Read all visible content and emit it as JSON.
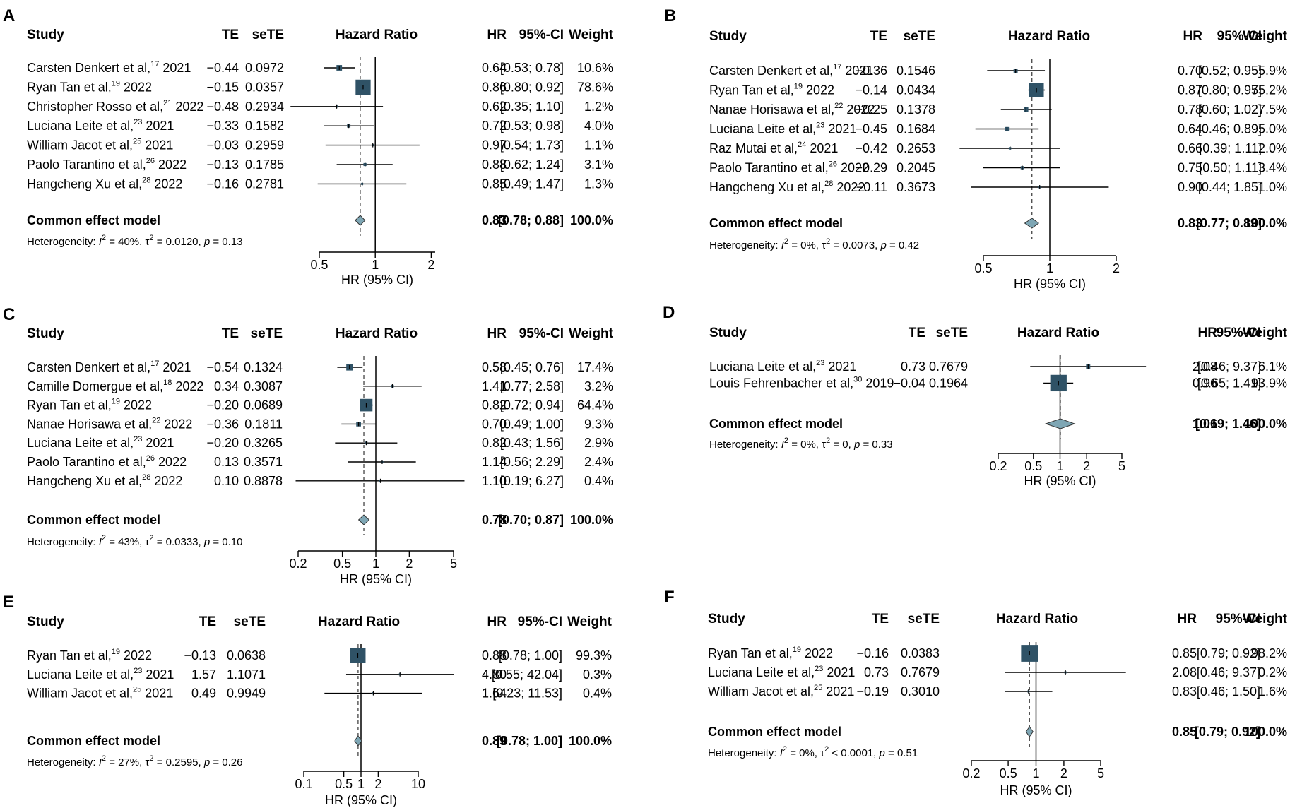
{
  "colors": {
    "box": "#2f5266",
    "diamond": "#7ea6b4",
    "dashed": "#444444",
    "line": "#000000"
  },
  "headers": {
    "study": "Study",
    "te": "TE",
    "sete": "seTE",
    "plot": "Hazard Ratio",
    "hr": "HR",
    "ci": "95%-CI",
    "weight": "Weight"
  },
  "chart_data": [
    {
      "type": "forest",
      "panel": "A",
      "studies": [
        {
          "author": "Carsten Denkert et al,",
          "ref": "17",
          "year": "2021",
          "te": "−0.44",
          "sete": "0.0972",
          "hr": 0.64,
          "lo": 0.53,
          "hi": 0.78,
          "hr_text": "0.64",
          "ci_text": "[0.53; 0.78]",
          "weight_text": "10.6%",
          "weight": 10.6
        },
        {
          "author": "Ryan Tan et al,",
          "ref": "19",
          "year": "2022",
          "te": "−0.15",
          "sete": "0.0357",
          "hr": 0.86,
          "lo": 0.8,
          "hi": 0.92,
          "hr_text": "0.86",
          "ci_text": "[0.80; 0.92]",
          "weight_text": "78.6%",
          "weight": 78.6
        },
        {
          "author": "Christopher Rosso et al,",
          "ref": "21",
          "year": "2022",
          "te": "−0.48",
          "sete": "0.2934",
          "hr": 0.62,
          "lo": 0.35,
          "hi": 1.1,
          "hr_text": "0.62",
          "ci_text": "[0.35; 1.10]",
          "weight_text": "1.2%",
          "weight": 1.2
        },
        {
          "author": "Luciana Leite et al,",
          "ref": "23",
          "year": "2021",
          "te": "−0.33",
          "sete": "0.1582",
          "hr": 0.72,
          "lo": 0.53,
          "hi": 0.98,
          "hr_text": "0.72",
          "ci_text": "[0.53; 0.98]",
          "weight_text": "4.0%",
          "weight": 4.0
        },
        {
          "author": "William Jacot et al,",
          "ref": "25",
          "year": "2021",
          "te": "−0.03",
          "sete": "0.2959",
          "hr": 0.97,
          "lo": 0.54,
          "hi": 1.73,
          "hr_text": "0.97",
          "ci_text": "[0.54; 1.73]",
          "weight_text": "1.1%",
          "weight": 1.1
        },
        {
          "author": "Paolo Tarantino et al,",
          "ref": "26",
          "year": "2022",
          "te": "−0.13",
          "sete": "0.1785",
          "hr": 0.88,
          "lo": 0.62,
          "hi": 1.24,
          "hr_text": "0.88",
          "ci_text": "[0.62; 1.24]",
          "weight_text": "3.1%",
          "weight": 3.1
        },
        {
          "author": "Hangcheng Xu et al,",
          "ref": "28",
          "year": "2022",
          "te": "−0.16",
          "sete": "0.2781",
          "hr": 0.85,
          "lo": 0.49,
          "hi": 1.47,
          "hr_text": "0.85",
          "ci_text": "[0.49; 1.47]",
          "weight_text": "1.3%",
          "weight": 1.3
        }
      ],
      "summary": {
        "label": "Common effect model",
        "hr": 0.83,
        "lo": 0.78,
        "hi": 0.88,
        "hr_text": "0.83",
        "ci_text": "[0.78; 0.88]",
        "weight_text": "100.0%"
      },
      "heterogeneity": {
        "prefix": "Heterogeneity: ",
        "i2": "40%",
        "tau_rel": " = ",
        "tau2": "0.0120",
        "p_rel": " = ",
        "p": "0.13"
      },
      "ticks": [
        0.5,
        1,
        2
      ],
      "tick_labels": [
        "0.5",
        "1",
        "2"
      ],
      "xrange": [
        0.5,
        2.1
      ],
      "xlabel": "HR (95% CI)",
      "xscale": "log"
    },
    {
      "type": "forest",
      "panel": "B",
      "studies": [
        {
          "author": "Carsten Denkert et al,",
          "ref": "17",
          "year": "2021",
          "te": "−0.36",
          "sete": "0.1546",
          "hr": 0.7,
          "lo": 0.52,
          "hi": 0.95,
          "hr_text": "0.70",
          "ci_text": "[0.52; 0.95]",
          "weight_text": "5.9%",
          "weight": 5.9
        },
        {
          "author": "Ryan Tan et al,",
          "ref": "19",
          "year": "2022",
          "te": "−0.14",
          "sete": "0.0434",
          "hr": 0.87,
          "lo": 0.8,
          "hi": 0.95,
          "hr_text": "0.87",
          "ci_text": "[0.80; 0.95]",
          "weight_text": "75.2%",
          "weight": 75.2
        },
        {
          "author": "Nanae Horisawa et al,",
          "ref": "22",
          "year": "2022",
          "te": "−0.25",
          "sete": "0.1378",
          "hr": 0.78,
          "lo": 0.6,
          "hi": 1.02,
          "hr_text": "0.78",
          "ci_text": "[0.60; 1.02]",
          "weight_text": "7.5%",
          "weight": 7.5
        },
        {
          "author": "Luciana Leite et al,",
          "ref": "23",
          "year": "2021",
          "te": "−0.45",
          "sete": "0.1684",
          "hr": 0.64,
          "lo": 0.46,
          "hi": 0.89,
          "hr_text": "0.64",
          "ci_text": "[0.46; 0.89]",
          "weight_text": "5.0%",
          "weight": 5.0
        },
        {
          "author": "Raz Mutai et al,",
          "ref": "24",
          "year": "2021",
          "te": "−0.42",
          "sete": "0.2653",
          "hr": 0.66,
          "lo": 0.39,
          "hi": 1.11,
          "hr_text": "0.66",
          "ci_text": "[0.39; 1.11]",
          "weight_text": "2.0%",
          "weight": 2.0
        },
        {
          "author": "Paolo Tarantino et al,",
          "ref": "26",
          "year": "2022",
          "te": "−0.29",
          "sete": "0.2045",
          "hr": 0.75,
          "lo": 0.5,
          "hi": 1.11,
          "hr_text": "0.75",
          "ci_text": "[0.50; 1.11]",
          "weight_text": "3.4%",
          "weight": 3.4
        },
        {
          "author": "Hangcheng Xu et al,",
          "ref": "28",
          "year": "2022",
          "te": "−0.11",
          "sete": "0.3673",
          "hr": 0.9,
          "lo": 0.44,
          "hi": 1.85,
          "hr_text": "0.90",
          "ci_text": "[0.44; 1.85]",
          "weight_text": "1.0%",
          "weight": 1.0
        }
      ],
      "summary": {
        "label": "Common effect model",
        "hr": 0.83,
        "lo": 0.77,
        "hi": 0.89,
        "hr_text": "0.83",
        "ci_text": "[0.77; 0.89]",
        "weight_text": "100.0%"
      },
      "heterogeneity": {
        "prefix": "Heterogeneity: ",
        "i2": "0%",
        "tau_rel": " = ",
        "tau2": "0.0073",
        "p_rel": " = ",
        "p": "0.42"
      },
      "ticks": [
        0.5,
        1,
        2
      ],
      "tick_labels": [
        "0.5",
        "1",
        "2"
      ],
      "xrange": [
        0.5,
        2.0
      ],
      "xlabel": "HR (95% CI)",
      "xscale": "log"
    },
    {
      "type": "forest",
      "panel": "C",
      "studies": [
        {
          "author": "Carsten Denkert et al,",
          "ref": "17",
          "year": "2021",
          "te": "−0.54",
          "sete": "0.1324",
          "hr": 0.58,
          "lo": 0.45,
          "hi": 0.76,
          "hr_text": "0.58",
          "ci_text": "[0.45; 0.76]",
          "weight_text": "17.4%",
          "weight": 17.4
        },
        {
          "author": "Camille Domergue et al,",
          "ref": "18",
          "year": "2022",
          "te": "0.34",
          "sete": "0.3087",
          "hr": 1.41,
          "lo": 0.77,
          "hi": 2.58,
          "hr_text": "1.41",
          "ci_text": "[0.77; 2.58]",
          "weight_text": "3.2%",
          "weight": 3.2
        },
        {
          "author": "Ryan Tan et al,",
          "ref": "19",
          "year": "2022",
          "te": "−0.20",
          "sete": "0.0689",
          "hr": 0.82,
          "lo": 0.72,
          "hi": 0.94,
          "hr_text": "0.82",
          "ci_text": "[0.72; 0.94]",
          "weight_text": "64.4%",
          "weight": 64.4
        },
        {
          "author": "Nanae Horisawa et al,",
          "ref": "22",
          "year": "2022",
          "te": "−0.36",
          "sete": "0.1811",
          "hr": 0.7,
          "lo": 0.49,
          "hi": 1.0,
          "hr_text": "0.70",
          "ci_text": "[0.49; 1.00]",
          "weight_text": "9.3%",
          "weight": 9.3
        },
        {
          "author": "Luciana Leite et al,",
          "ref": "23",
          "year": "2021",
          "te": "−0.20",
          "sete": "0.3265",
          "hr": 0.82,
          "lo": 0.43,
          "hi": 1.56,
          "hr_text": "0.82",
          "ci_text": "[0.43; 1.56]",
          "weight_text": "2.9%",
          "weight": 2.9
        },
        {
          "author": "Paolo Tarantino et al,",
          "ref": "26",
          "year": "2022",
          "te": "0.13",
          "sete": "0.3571",
          "hr": 1.14,
          "lo": 0.56,
          "hi": 2.29,
          "hr_text": "1.14",
          "ci_text": "[0.56; 2.29]",
          "weight_text": "2.4%",
          "weight": 2.4
        },
        {
          "author": "Hangcheng Xu et al,",
          "ref": "28",
          "year": "2022",
          "te": "0.10",
          "sete": "0.8878",
          "hr": 1.1,
          "lo": 0.19,
          "hi": 6.27,
          "hr_text": "1.10",
          "ci_text": "[0.19; 6.27]",
          "weight_text": "0.4%",
          "weight": 0.4
        }
      ],
      "summary": {
        "label": "Common effect model",
        "hr": 0.78,
        "lo": 0.7,
        "hi": 0.87,
        "hr_text": "0.78",
        "ci_text": "[0.70; 0.87]",
        "weight_text": "100.0%"
      },
      "heterogeneity": {
        "prefix": "Heterogeneity: ",
        "i2": "43%",
        "tau_rel": " = ",
        "tau2": "0.0333",
        "p_rel": " = ",
        "p": "0.10"
      },
      "ticks": [
        0.2,
        0.5,
        1,
        2,
        5
      ],
      "tick_labels": [
        "0.2",
        "0.5",
        "1",
        "2",
        "5"
      ],
      "xrange": [
        0.2,
        5
      ],
      "xlabel": "HR (95% CI)",
      "xscale": "log"
    },
    {
      "type": "forest",
      "panel": "D",
      "studies": [
        {
          "author": "Luciana Leite et al,",
          "ref": "23",
          "year": "2021",
          "te": "0.73",
          "sete": "0.7679",
          "hr": 2.08,
          "lo": 0.46,
          "hi": 9.37,
          "hr_text": "2.08",
          "ci_text": "[0.46; 9.37]",
          "weight_text": "6.1%",
          "weight": 6.1
        },
        {
          "author": "Louis Fehrenbacher et al,",
          "ref": "30",
          "year": "2019",
          "te": "−0.04",
          "sete": "0.1964",
          "hr": 0.96,
          "lo": 0.65,
          "hi": 1.41,
          "hr_text": "0.96",
          "ci_text": "[0.65; 1.41]",
          "weight_text": "93.9%",
          "weight": 93.9
        }
      ],
      "summary": {
        "label": "Common effect model",
        "hr": 1.01,
        "lo": 0.69,
        "hi": 1.46,
        "hr_text": "1.01",
        "ci_text": "[0.69; 1.46]",
        "weight_text": "100.0%"
      },
      "heterogeneity": {
        "prefix": "Heterogeneity: ",
        "i2": "0%",
        "tau_rel": " = ",
        "tau2": "0",
        "p_rel": " = ",
        "p": "0.33"
      },
      "ticks": [
        0.2,
        0.5,
        1,
        2,
        5
      ],
      "tick_labels": [
        "0.2",
        "0.5",
        "1",
        "2",
        "5"
      ],
      "xrange": [
        0.2,
        5
      ],
      "xlabel": "HR (95% CI)",
      "xscale": "log"
    },
    {
      "type": "forest",
      "panel": "E",
      "studies": [
        {
          "author": "Ryan Tan et al,",
          "ref": "19",
          "year": "2022",
          "te": "−0.13",
          "sete": "0.0638",
          "hr": 0.88,
          "lo": 0.78,
          "hi": 1.0,
          "hr_text": "0.88",
          "ci_text": "[0.78; 1.00]",
          "weight_text": "99.3%",
          "weight": 99.3
        },
        {
          "author": "Luciana Leite et al,",
          "ref": "23",
          "year": "2021",
          "te": "1.57",
          "sete": "1.1071",
          "hr": 4.8,
          "lo": 0.55,
          "hi": 42.04,
          "hr_text": "4.80",
          "ci_text": "[0.55; 42.04]",
          "weight_text": "0.3%",
          "weight": 0.3
        },
        {
          "author": "William Jacot et al,",
          "ref": "25",
          "year": "2021",
          "te": "0.49",
          "sete": "0.9949",
          "hr": 1.64,
          "lo": 0.23,
          "hi": 11.53,
          "hr_text": "1.64",
          "ci_text": "[0.23; 11.53]",
          "weight_text": "0.4%",
          "weight": 0.4
        }
      ],
      "summary": {
        "label": "Common effect model",
        "hr": 0.89,
        "lo": 0.78,
        "hi": 1.0,
        "hr_text": "0.89",
        "ci_text": "[0.78; 1.00]",
        "weight_text": "100.0%"
      },
      "heterogeneity": {
        "prefix": "Heterogeneity: ",
        "i2": "27%",
        "tau_rel": " = ",
        "tau2": "0.2595",
        "p_rel": " = ",
        "p": "0.26"
      },
      "ticks": [
        0.1,
        0.5,
        1,
        2,
        10
      ],
      "tick_labels": [
        "0.1",
        "0.5",
        "1",
        "2",
        "10"
      ],
      "xrange": [
        0.1,
        10
      ],
      "xlabel": "HR (95% CI)",
      "xscale": "log"
    },
    {
      "type": "forest",
      "panel": "F",
      "studies": [
        {
          "author": "Ryan Tan et al,",
          "ref": "19",
          "year": "2022",
          "te": "−0.16",
          "sete": "0.0383",
          "hr": 0.85,
          "lo": 0.79,
          "hi": 0.92,
          "hr_text": "0.85",
          "ci_text": "[0.79; 0.92]",
          "weight_text": "98.2%",
          "weight": 98.2
        },
        {
          "author": "Luciana Leite et al,",
          "ref": "23",
          "year": "2021",
          "te": "0.73",
          "sete": "0.7679",
          "hr": 2.08,
          "lo": 0.46,
          "hi": 9.37,
          "hr_text": "2.08",
          "ci_text": "[0.46; 9.37]",
          "weight_text": "0.2%",
          "weight": 0.2
        },
        {
          "author": "William Jacot et al,",
          "ref": "25",
          "year": "2021",
          "te": "−0.19",
          "sete": "0.3010",
          "hr": 0.83,
          "lo": 0.46,
          "hi": 1.5,
          "hr_text": "0.83",
          "ci_text": "[0.46; 1.50]",
          "weight_text": "1.6%",
          "weight": 1.6
        }
      ],
      "summary": {
        "label": "Common effect model",
        "hr": 0.85,
        "lo": 0.79,
        "hi": 0.92,
        "hr_text": "0.85",
        "ci_text": "[0.79; 0.92]",
        "weight_text": "100.0%"
      },
      "heterogeneity": {
        "prefix": "Heterogeneity: ",
        "i2": "0%",
        "tau_rel": " < ",
        "tau2": "0.0001",
        "p_rel": " = ",
        "p": "0.51"
      },
      "ticks": [
        0.2,
        0.5,
        1,
        2,
        5
      ],
      "tick_labels": [
        "0.2",
        "0.5",
        "1",
        "2",
        "5"
      ],
      "xrange": [
        0.2,
        5
      ],
      "xlabel": "HR (95% CI)",
      "xscale": "log"
    }
  ]
}
